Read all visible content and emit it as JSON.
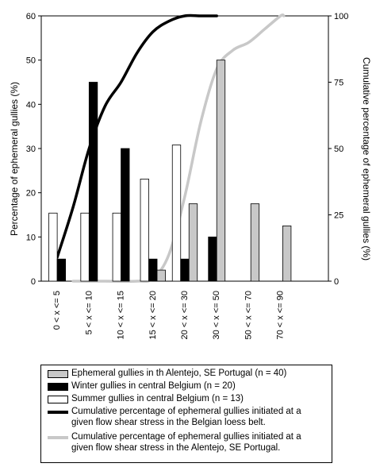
{
  "chart_data": {
    "type": "bar",
    "categories": [
      "0 < x <= 5",
      "5 < x <= 10",
      "10 < x <= 15",
      "15 < x <= 20",
      "20 < x <= 30",
      "30 < x <= 50",
      "50 < x <= 70",
      "70 < x <= 90"
    ],
    "ylabel": "Percentage of ephemeral gullies (%)",
    "y2label": "Cumulative percentage of ephemeral gullies (%)",
    "ylim": [
      0,
      60
    ],
    "y2lim": [
      0,
      100
    ],
    "yticks": [
      0,
      10,
      20,
      30,
      40,
      50,
      60
    ],
    "y2ticks": [
      0,
      25,
      50,
      75,
      100
    ],
    "series": [
      {
        "name": "Summer gullies in central Belgium (n = 13)",
        "kind": "bar",
        "color": "#ffffff",
        "values": [
          15.4,
          15.4,
          15.4,
          23.1,
          30.8,
          null,
          null,
          null
        ]
      },
      {
        "name": "Winter gullies in central Belgium (n = 20)",
        "kind": "bar",
        "color": "#000000",
        "values": [
          5,
          45,
          30,
          5,
          5,
          10,
          null,
          null
        ]
      },
      {
        "name": "Ephemeral gullies in th Alentejo, SE Portugal (n = 40)",
        "kind": "bar",
        "color": "#c8c8c8",
        "values": [
          null,
          null,
          null,
          2.5,
          17.5,
          50,
          17.5,
          12.5
        ]
      },
      {
        "name": "Cumulative percentage of ephemeral gullies initiated at a given flow shear stress in the Belgian loess belt.",
        "kind": "line",
        "axis": "right",
        "color": "#000000",
        "x": [
          0.5,
          1.0,
          1.5,
          2.0,
          2.5,
          3.0,
          3.5,
          4.0,
          4.5,
          5.0,
          5.5
        ],
        "values": [
          9,
          28,
          50,
          66,
          75,
          86,
          94,
          98,
          100,
          100,
          100
        ]
      },
      {
        "name": "Cumulative percentage of ephemeral gullies initiated at a given flow shear stress in the Alentejo, SE Portugal.",
        "kind": "line",
        "axis": "right",
        "color": "#c8c8c8",
        "x": [
          1.0,
          2.0,
          3.0,
          3.5,
          4.0,
          4.5,
          5.0,
          5.5,
          6.0,
          6.5,
          7.0,
          7.5,
          7.6
        ],
        "values": [
          0,
          0,
          0,
          1,
          10,
          32,
          60,
          80,
          87,
          90,
          95,
          100,
          100
        ]
      }
    ],
    "legend": {
      "position": "bottom",
      "items": [
        {
          "label": "Ephemeral gullies in th Alentejo, SE Portugal (n = 40)",
          "style": "bar",
          "color": "#c8c8c8"
        },
        {
          "label": "Winter gullies in central Belgium (n = 20)",
          "style": "bar",
          "color": "#000000"
        },
        {
          "label": "Summer gullies in central Belgium (n = 13)",
          "style": "bar",
          "color": "#ffffff"
        },
        {
          "label": "Cumulative percentage of ephemeral gullies initiated at a given flow shear stress in the Belgian loess belt.",
          "style": "line",
          "color": "#000000"
        },
        {
          "label": "Cumulative percentage of ephemeral gullies initiated at a given flow shear stress in the Alentejo, SE Portugal.",
          "style": "line",
          "color": "#c8c8c8"
        }
      ]
    }
  }
}
